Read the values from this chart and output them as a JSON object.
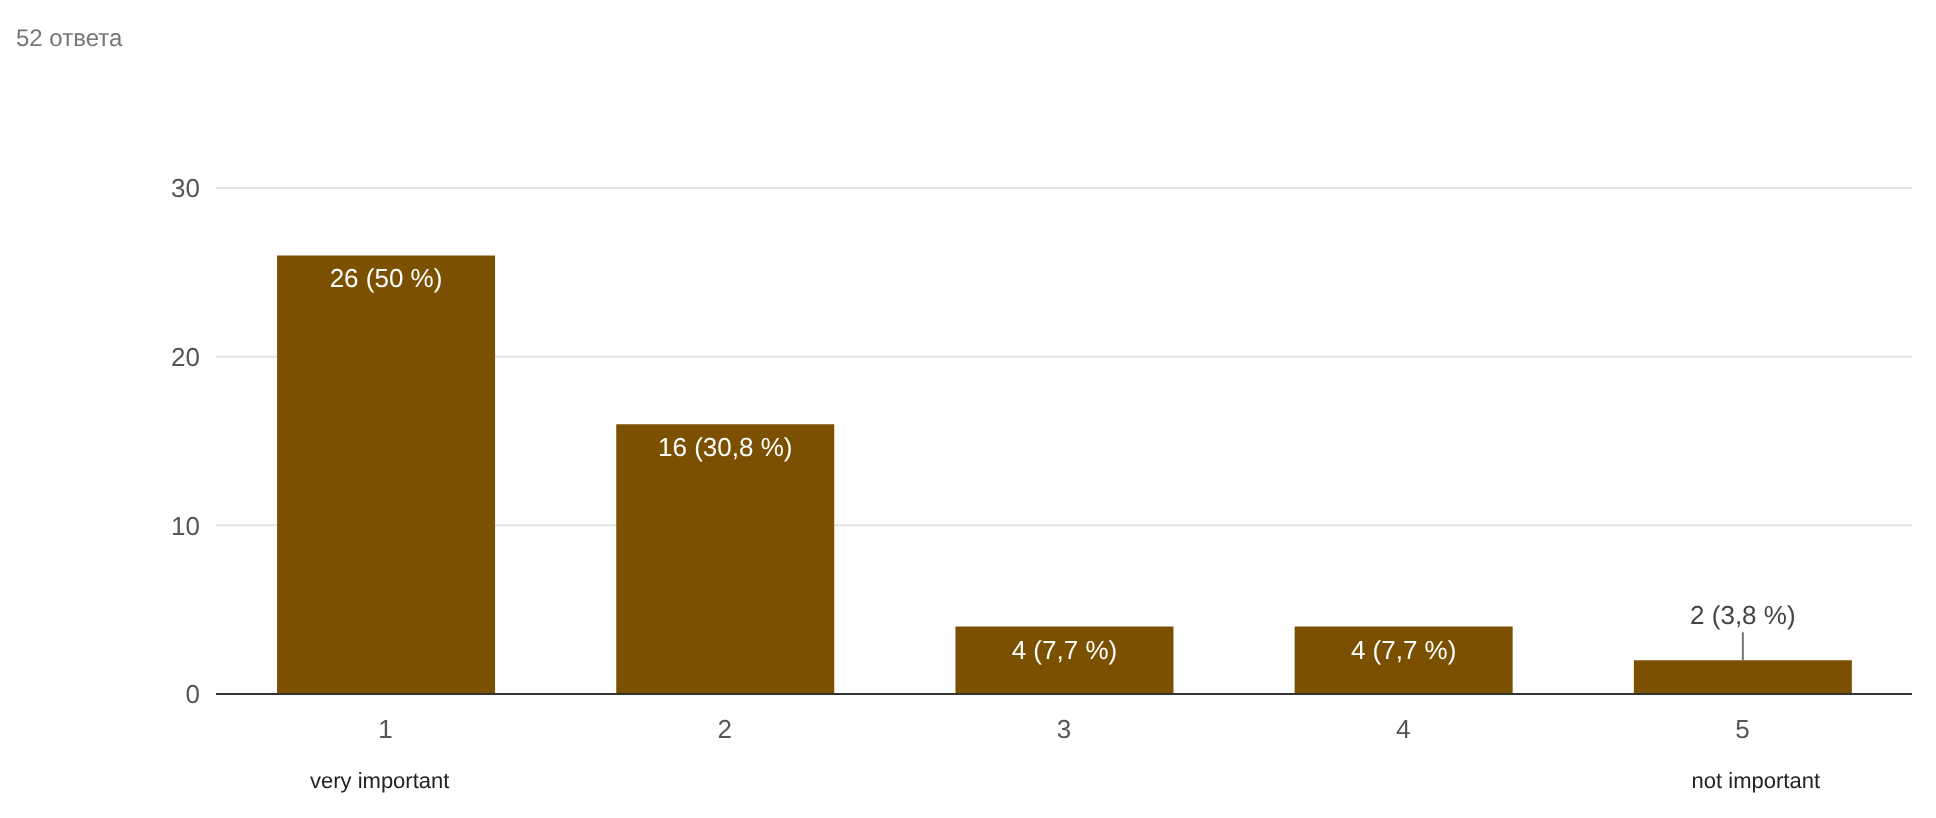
{
  "chart_data": {
    "type": "bar",
    "title": "52 ответа",
    "categories": [
      "1",
      "2",
      "3",
      "4",
      "5"
    ],
    "values": [
      26,
      16,
      4,
      4,
      2
    ],
    "value_labels": [
      "26 (50 %)",
      "16 (30,8 %)",
      "4 (7,7 %)",
      "4 (7,7 %)",
      "2 (3,8 %)"
    ],
    "color": "#7b5000",
    "ylim": [
      0,
      30
    ],
    "yticks": [
      0,
      10,
      20,
      30
    ],
    "grid": "y",
    "annotations": [
      "very important",
      "not important"
    ]
  }
}
